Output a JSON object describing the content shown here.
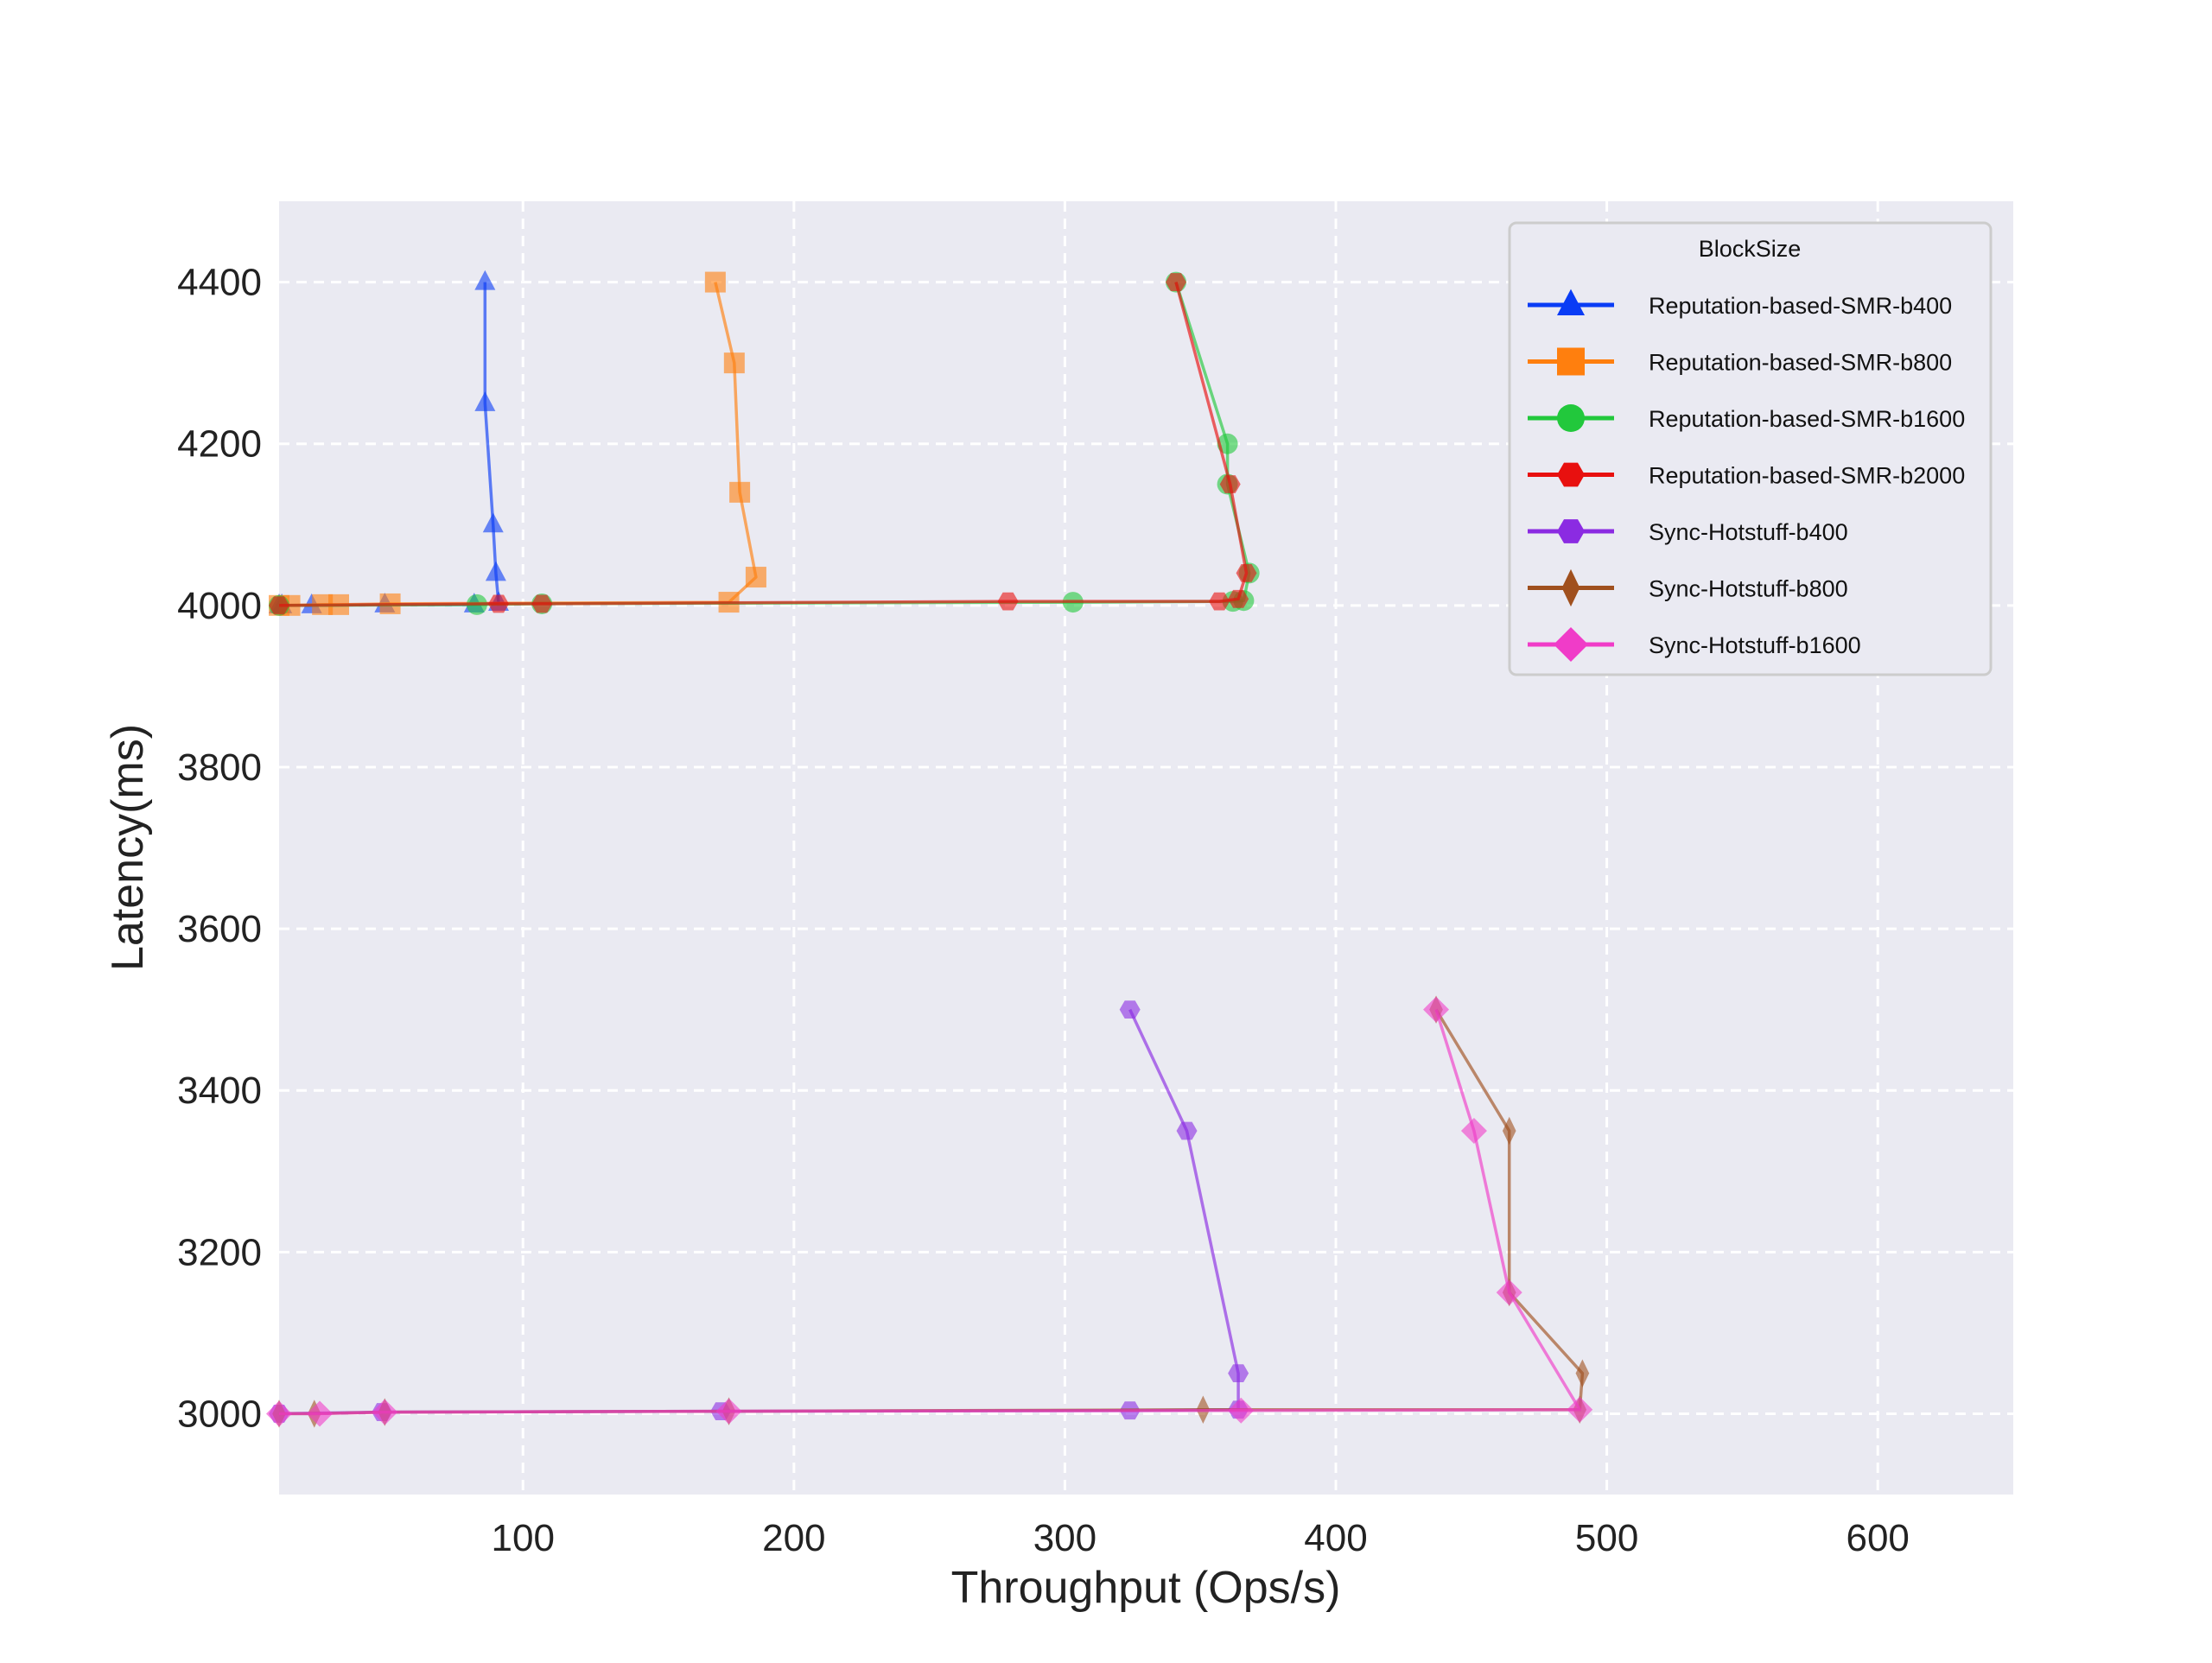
{
  "chart_data": {
    "type": "line",
    "title": "",
    "xlabel": "Throughput (Ops/s)",
    "ylabel": "Latency(ms)",
    "xlim": [
      10,
      650
    ],
    "ylim": [
      2900,
      4500
    ],
    "xticks": [
      100,
      200,
      300,
      400,
      500,
      600
    ],
    "yticks": [
      3000,
      3200,
      3400,
      3600,
      3800,
      4000,
      4200,
      4400
    ],
    "grid": true,
    "grid_style": "dashed-white",
    "background": "#EAEAF2",
    "legend": {
      "title": "BlockSize",
      "placement": "top-right"
    },
    "series": [
      {
        "name": "Reputation-based-SMR-b400",
        "color": "#0A3CF5",
        "marker": "triangle",
        "x": [
          10,
          11,
          22,
          49,
          82,
          91,
          90,
          89,
          86,
          86
        ],
        "y": [
          4000,
          4000,
          4000,
          4001,
          4001,
          4003,
          4040,
          4100,
          4250,
          4400
        ]
      },
      {
        "name": "Reputation-based-SMR-b800",
        "color": "#FF7F0E",
        "marker": "square",
        "x": [
          10,
          14,
          26,
          32,
          51,
          176,
          186,
          180,
          178,
          171
        ],
        "y": [
          4000,
          4000,
          4001,
          4001,
          4002,
          4004,
          4035,
          4140,
          4300,
          4400
        ]
      },
      {
        "name": "Reputation-based-SMR-b1600",
        "color": "#22C83C",
        "marker": "circle",
        "x": [
          10,
          83,
          107,
          303,
          362,
          366,
          368,
          360,
          360,
          341
        ],
        "y": [
          4000,
          4001,
          4002,
          4004,
          4005,
          4006,
          4040,
          4150,
          4200,
          4400
        ]
      },
      {
        "name": "Reputation-based-SMR-b2000",
        "color": "#E8100F",
        "marker": "hexagon",
        "x": [
          10,
          91,
          107,
          279,
          357,
          364,
          367,
          361,
          341
        ],
        "y": [
          4000,
          4002,
          4002,
          4005,
          4005,
          4008,
          4040,
          4150,
          4400
        ]
      },
      {
        "name": "Sync-Hotstuff-b400",
        "color": "#8B2BE2",
        "marker": "hexagon",
        "x": [
          10,
          48,
          173,
          324,
          364,
          364,
          345,
          324
        ],
        "y": [
          3000,
          3002,
          3003,
          3004,
          3005,
          3050,
          3350,
          3500
        ]
      },
      {
        "name": "Sync-Hotstuff-b800",
        "color": "#A0501E",
        "marker": "thin-diamond",
        "x": [
          10,
          23,
          49,
          176,
          351,
          490,
          491,
          464,
          464,
          437
        ],
        "y": [
          3000,
          3000,
          3002,
          3003,
          3005,
          3005,
          3050,
          3150,
          3350,
          3500
        ]
      },
      {
        "name": "Sync-Hotstuff-b1600",
        "color": "#F03CC8",
        "marker": "diamond",
        "x": [
          10,
          25,
          49,
          176,
          365,
          490,
          464,
          451,
          437
        ],
        "y": [
          3000,
          3000,
          3002,
          3003,
          3004,
          3005,
          3150,
          3350,
          3500
        ]
      }
    ]
  }
}
